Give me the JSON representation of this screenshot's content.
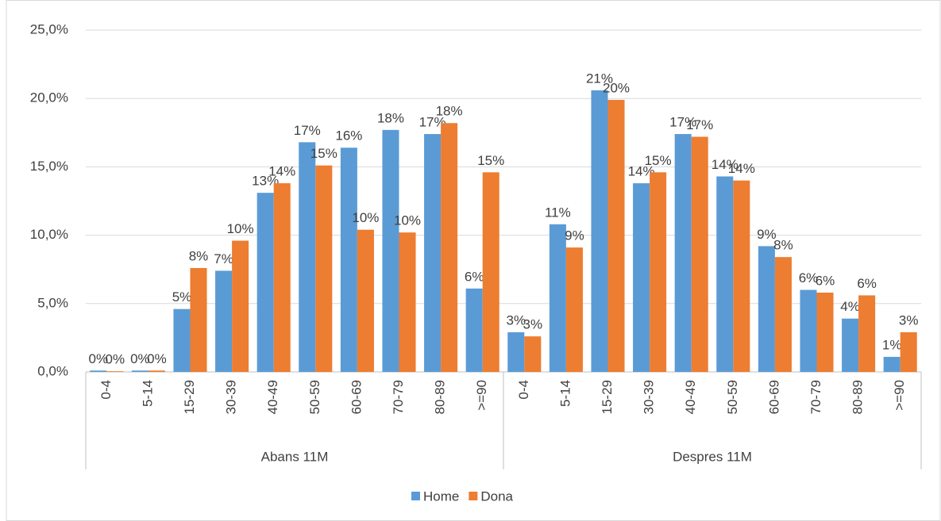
{
  "chart_data": {
    "type": "bar",
    "x_groups": [
      "Abans 11M",
      "Despres 11M"
    ],
    "categories": [
      "0-4",
      "5-14",
      "15-29",
      "30-39",
      "40-49",
      "50-59",
      "60-69",
      "70-79",
      "80-89",
      ">=90",
      "0-4",
      "5-14",
      "15-29",
      "30-39",
      "40-49",
      "50-59",
      "60-69",
      "70-79",
      "80-89",
      ">=90"
    ],
    "series": [
      {
        "name": "Home",
        "color": "#5b9bd5",
        "values": [
          0.1,
          0.1,
          4.6,
          7.4,
          13.1,
          16.8,
          16.4,
          17.7,
          17.4,
          6.1,
          2.9,
          10.8,
          20.6,
          13.8,
          17.4,
          14.3,
          9.2,
          6.0,
          3.9,
          1.1
        ],
        "value_labels": [
          "0%",
          "0%",
          "5%",
          "7%",
          "13%",
          "17%",
          "16%",
          "18%",
          "17%",
          "6%",
          "3%",
          "11%",
          "21%",
          "14%",
          "17%",
          "14%",
          "9%",
          "6%",
          "4%",
          "1%"
        ]
      },
      {
        "name": "Dona",
        "color": "#ed7d31",
        "values": [
          0.05,
          0.1,
          7.6,
          9.6,
          13.8,
          15.1,
          10.4,
          10.2,
          18.2,
          14.6,
          2.6,
          9.1,
          19.9,
          14.6,
          17.2,
          14.0,
          8.4,
          5.8,
          5.6,
          2.9
        ],
        "value_labels": [
          "0%",
          "0%",
          "8%",
          "10%",
          "14%",
          "15%",
          "10%",
          "10%",
          "18%",
          "15%",
          "3%",
          "9%",
          "20%",
          "15%",
          "17%",
          "14%",
          "8%",
          "6%",
          "6%",
          "3%"
        ]
      }
    ],
    "ylim": [
      0,
      25
    ],
    "yticks": [
      {
        "value": 0,
        "label": "0,0%"
      },
      {
        "value": 5,
        "label": "5,0%"
      },
      {
        "value": 10,
        "label": "10,0%"
      },
      {
        "value": 15,
        "label": "15,0%"
      },
      {
        "value": 20,
        "label": "20,0%"
      },
      {
        "value": 25,
        "label": "25,0%"
      }
    ],
    "grid": true,
    "legend": "bottom"
  }
}
